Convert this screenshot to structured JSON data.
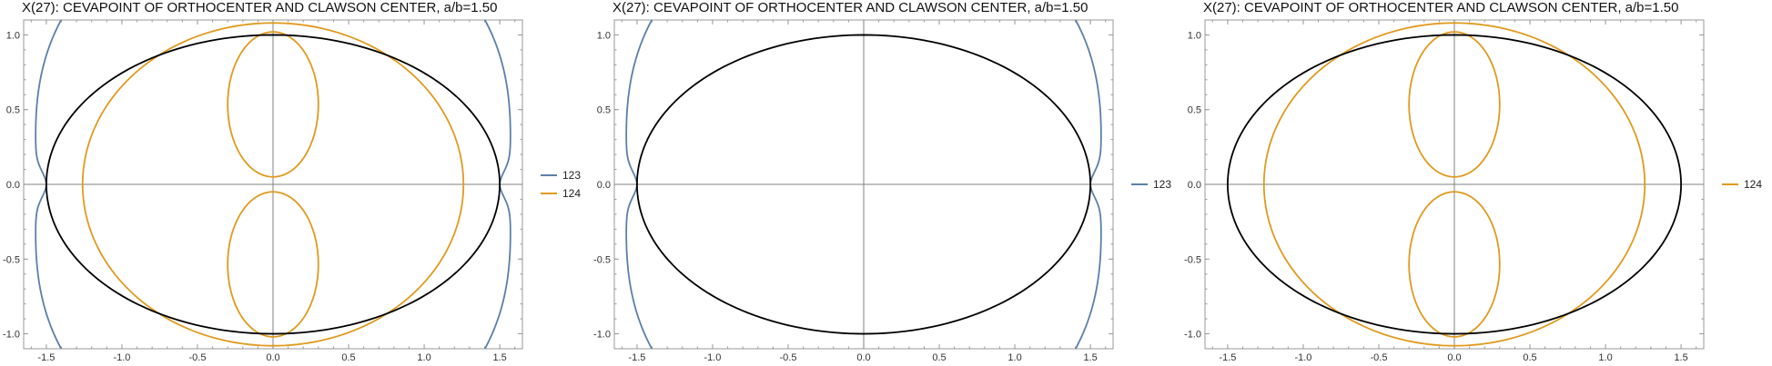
{
  "colors": {
    "ellipse": "#000000",
    "c123": "#5b7fab",
    "c124": "#e09a1e",
    "axis": "#808080",
    "frame": "#999999"
  },
  "chart_data": [
    {
      "type": "line",
      "title": "X(27): CEVAPOINT OF ORTHOCENTER AND CLAWSON CENTER, a/b=1.50",
      "xlim": [
        -1.65,
        1.65
      ],
      "ylim": [
        -1.1,
        1.1
      ],
      "xticks": [
        "-1.5",
        "-1.0",
        "-0.5",
        "0.0",
        "0.5",
        "1.0",
        "1.5"
      ],
      "yticks": [
        "-1.0",
        "-0.5",
        "0.0",
        "0.5",
        "1.0"
      ],
      "legend": [
        "123",
        "124"
      ],
      "legend_position": "right",
      "series": [
        {
          "name": "123",
          "shape": "outer-curves",
          "x_at_y0": 1.5,
          "x_at_y_max": 1.38
        },
        {
          "name": "124",
          "shape": "ellipse-ring-and-loops",
          "ring_x": 1.26,
          "ring_y": 1.08,
          "loop_x": 0.3,
          "loop_y": [
            0.05,
            1.02
          ]
        }
      ],
      "ellipse": {
        "a": 1.5,
        "b": 1.0
      }
    },
    {
      "type": "line",
      "title": "X(27): CEVAPOINT OF ORTHOCENTER AND CLAWSON CENTER, a/b=1.50",
      "xlim": [
        -1.65,
        1.65
      ],
      "ylim": [
        -1.1,
        1.1
      ],
      "xticks": [
        "-1.5",
        "-1.0",
        "-0.5",
        "0.0",
        "0.5",
        "1.0",
        "1.5"
      ],
      "yticks": [
        "-1.0",
        "-0.5",
        "0.0",
        "0.5",
        "1.0"
      ],
      "legend": [
        "123"
      ],
      "legend_position": "right",
      "series": [
        {
          "name": "123",
          "shape": "outer-curves",
          "x_at_y0": 1.5,
          "x_at_y_max": 1.38
        }
      ],
      "ellipse": {
        "a": 1.5,
        "b": 1.0
      }
    },
    {
      "type": "line",
      "title": "X(27): CEVAPOINT OF ORTHOCENTER AND CLAWSON CENTER, a/b=1.50",
      "xlim": [
        -1.65,
        1.65
      ],
      "ylim": [
        -1.1,
        1.1
      ],
      "xticks": [
        "-1.5",
        "-1.0",
        "-0.5",
        "0.0",
        "0.5",
        "1.0",
        "1.5"
      ],
      "yticks": [
        "-1.0",
        "-0.5",
        "0.0",
        "0.5",
        "1.0"
      ],
      "legend": [
        "124"
      ],
      "legend_position": "right",
      "series": [
        {
          "name": "124",
          "shape": "ellipse-ring-and-loops",
          "ring_x": 1.26,
          "ring_y": 1.08,
          "loop_x": 0.3,
          "loop_y": [
            0.05,
            1.02
          ]
        }
      ],
      "ellipse": {
        "a": 1.5,
        "b": 1.0
      }
    }
  ]
}
